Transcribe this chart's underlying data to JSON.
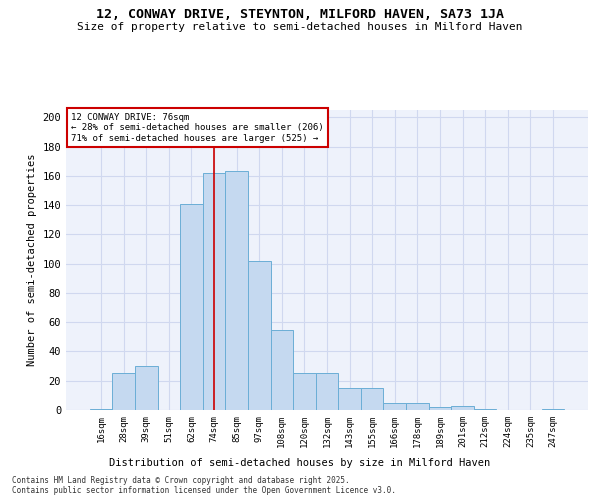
{
  "title1": "12, CONWAY DRIVE, STEYNTON, MILFORD HAVEN, SA73 1JA",
  "title2": "Size of property relative to semi-detached houses in Milford Haven",
  "xlabel": "Distribution of semi-detached houses by size in Milford Haven",
  "ylabel": "Number of semi-detached properties",
  "categories": [
    "16sqm",
    "28sqm",
    "39sqm",
    "51sqm",
    "62sqm",
    "74sqm",
    "85sqm",
    "97sqm",
    "108sqm",
    "120sqm",
    "132sqm",
    "143sqm",
    "155sqm",
    "166sqm",
    "178sqm",
    "189sqm",
    "201sqm",
    "212sqm",
    "224sqm",
    "235sqm",
    "247sqm"
  ],
  "values": [
    1,
    25,
    30,
    0,
    141,
    162,
    163,
    102,
    55,
    25,
    25,
    15,
    15,
    5,
    5,
    2,
    3,
    1,
    0,
    0,
    1
  ],
  "bar_color": "#c5d9f0",
  "bar_edge_color": "#6baed6",
  "background_color": "#eef2fb",
  "grid_color": "#d0d8ef",
  "vline_x_index": 5,
  "vline_color": "#cc0000",
  "annotation_title": "12 CONWAY DRIVE: 76sqm",
  "annotation_line2": "← 28% of semi-detached houses are smaller (206)",
  "annotation_line3": "71% of semi-detached houses are larger (525) →",
  "annotation_box_color": "#cc0000",
  "footnote1": "Contains HM Land Registry data © Crown copyright and database right 2025.",
  "footnote2": "Contains public sector information licensed under the Open Government Licence v3.0.",
  "ylim": [
    0,
    205
  ],
  "yticks": [
    0,
    20,
    40,
    60,
    80,
    100,
    120,
    140,
    160,
    180,
    200
  ]
}
